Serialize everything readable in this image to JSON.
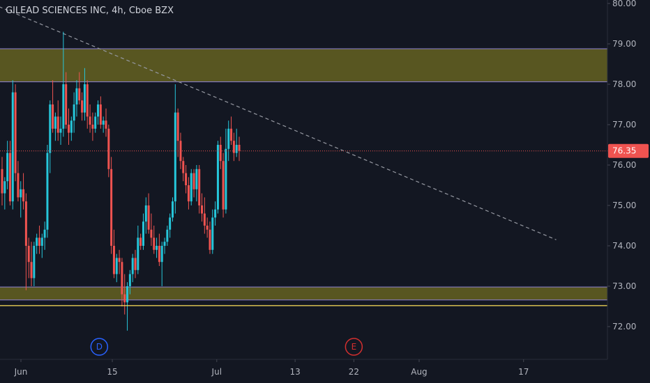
{
  "header": {
    "title": "GILEAD SCIENCES INC, 4h, Cboe BZX"
  },
  "colors": {
    "background": "#131722",
    "up": "#26c6da",
    "down": "#ef5350",
    "zone_fill": "#5c5a22",
    "zone_border": "#8a7fd1",
    "support_line": "#ffe15a",
    "trendline": "#9598a1",
    "price_line": "#ef5350",
    "axis_text": "#b2b5be",
    "marker_dividend": "#2962ff",
    "marker_earnings": "#d32f2f"
  },
  "chart_data": {
    "type": "candlestick",
    "title": "GILEAD SCIENCES INC, 4h, Cboe BZX",
    "y_range": [
      71.4,
      80.1
    ],
    "y_ticks": [
      "80.00",
      "79.00",
      "78.00",
      "77.00",
      "76.00",
      "75.00",
      "74.00",
      "73.00",
      "72.00"
    ],
    "x_ticks": [
      "Jun",
      "15",
      "Jul",
      "13",
      "22",
      "Aug",
      "17"
    ],
    "last_price": "76.35",
    "zones": [
      {
        "name": "resistance-zone",
        "top": 78.88,
        "bottom": 78.06
      },
      {
        "name": "support-zone",
        "top": 72.98,
        "bottom": 72.66
      }
    ],
    "horizontal_lines": [
      {
        "name": "support-line",
        "price": 72.52
      }
    ],
    "trendline": {
      "start": [
        "May 26",
        80.1
      ],
      "end": [
        "Aug 22",
        74.15
      ]
    },
    "markers": [
      {
        "label": "D",
        "type": "dividend",
        "date": "Jun 13"
      },
      {
        "label": "E",
        "type": "earnings",
        "date": "Jul 22"
      }
    ],
    "candles": [
      [
        75.9,
        76.2,
        75.0,
        75.3
      ],
      [
        75.3,
        75.7,
        74.9,
        75.6
      ],
      [
        75.6,
        76.6,
        75.4,
        76.3
      ],
      [
        76.3,
        76.6,
        75.0,
        75.1
      ],
      [
        75.1,
        78.1,
        74.9,
        77.8
      ],
      [
        77.8,
        78.0,
        75.6,
        75.8
      ],
      [
        75.8,
        76.1,
        75.1,
        75.2
      ],
      [
        75.2,
        75.6,
        74.7,
        75.4
      ],
      [
        75.4,
        75.8,
        74.9,
        75.1
      ],
      [
        75.1,
        75.3,
        72.9,
        74.0
      ],
      [
        74.0,
        74.2,
        73.2,
        73.6
      ],
      [
        73.6,
        74.1,
        73.0,
        73.2
      ],
      [
        73.2,
        74.1,
        73.0,
        74.0
      ],
      [
        74.0,
        74.3,
        73.8,
        74.2
      ],
      [
        74.2,
        74.5,
        73.8,
        74.0
      ],
      [
        74.0,
        74.3,
        73.7,
        74.2
      ],
      [
        74.2,
        74.6,
        73.9,
        74.4
      ],
      [
        74.4,
        76.5,
        74.2,
        76.3
      ],
      [
        76.3,
        77.6,
        75.8,
        77.5
      ],
      [
        77.5,
        78.1,
        76.8,
        76.9
      ],
      [
        76.9,
        77.3,
        76.6,
        77.2
      ],
      [
        77.2,
        77.6,
        76.6,
        76.8
      ],
      [
        76.8,
        77.2,
        76.5,
        76.9
      ],
      [
        76.9,
        79.3,
        76.7,
        78.0
      ],
      [
        78.0,
        78.3,
        76.9,
        77.0
      ],
      [
        77.0,
        77.4,
        76.5,
        76.8
      ],
      [
        76.8,
        77.2,
        76.6,
        77.1
      ],
      [
        77.1,
        77.8,
        76.8,
        77.5
      ],
      [
        77.5,
        78.1,
        77.2,
        77.9
      ],
      [
        77.9,
        78.3,
        77.5,
        77.6
      ],
      [
        77.6,
        77.8,
        77.1,
        77.3
      ],
      [
        77.3,
        78.4,
        77.1,
        78.0
      ],
      [
        78.0,
        78.1,
        76.9,
        77.2
      ],
      [
        77.2,
        77.5,
        76.8,
        77.0
      ],
      [
        77.0,
        77.3,
        76.6,
        76.9
      ],
      [
        76.9,
        77.3,
        76.8,
        77.2
      ],
      [
        77.2,
        77.6,
        77.0,
        77.5
      ],
      [
        77.5,
        77.7,
        76.9,
        77.0
      ],
      [
        77.0,
        77.2,
        76.8,
        77.1
      ],
      [
        77.1,
        77.4,
        76.7,
        76.9
      ],
      [
        76.9,
        77.0,
        75.7,
        75.9
      ],
      [
        75.9,
        76.2,
        73.8,
        74.0
      ],
      [
        74.0,
        74.4,
        73.2,
        73.3
      ],
      [
        73.3,
        73.8,
        73.1,
        73.7
      ],
      [
        73.7,
        73.9,
        73.3,
        73.6
      ],
      [
        73.6,
        73.7,
        72.5,
        72.8
      ],
      [
        72.8,
        73.3,
        72.3,
        72.6
      ],
      [
        72.6,
        73.1,
        71.9,
        73.0
      ],
      [
        73.0,
        73.4,
        72.8,
        73.3
      ],
      [
        73.3,
        73.8,
        73.1,
        73.7
      ],
      [
        73.7,
        73.9,
        73.2,
        73.4
      ],
      [
        73.4,
        74.5,
        73.3,
        74.2
      ],
      [
        74.2,
        74.3,
        73.9,
        74.0
      ],
      [
        74.0,
        74.8,
        73.9,
        74.6
      ],
      [
        74.6,
        75.2,
        74.3,
        75.0
      ],
      [
        75.0,
        75.3,
        74.3,
        74.4
      ],
      [
        74.4,
        74.8,
        74.0,
        74.2
      ],
      [
        74.2,
        74.5,
        73.8,
        73.9
      ],
      [
        73.9,
        74.2,
        73.7,
        74.0
      ],
      [
        74.0,
        74.3,
        73.5,
        73.6
      ],
      [
        73.6,
        74.1,
        73.0,
        74.0
      ],
      [
        74.0,
        74.2,
        73.8,
        74.1
      ],
      [
        74.1,
        74.5,
        74.0,
        74.4
      ],
      [
        74.4,
        74.8,
        74.2,
        74.7
      ],
      [
        74.7,
        75.2,
        74.6,
        75.1
      ],
      [
        75.1,
        78.0,
        74.8,
        77.3
      ],
      [
        77.3,
        77.4,
        76.2,
        76.6
      ],
      [
        76.6,
        76.8,
        75.9,
        76.1
      ],
      [
        76.1,
        76.2,
        75.6,
        75.8
      ],
      [
        75.8,
        76.0,
        75.3,
        75.5
      ],
      [
        75.5,
        75.7,
        74.9,
        75.1
      ],
      [
        75.1,
        75.9,
        75.0,
        75.8
      ],
      [
        75.8,
        75.9,
        75.2,
        75.4
      ],
      [
        75.4,
        76.0,
        75.1,
        75.9
      ],
      [
        75.9,
        76.0,
        74.8,
        75.0
      ],
      [
        75.0,
        75.3,
        74.6,
        74.8
      ],
      [
        74.8,
        75.2,
        74.3,
        74.5
      ],
      [
        74.5,
        74.7,
        74.2,
        74.4
      ],
      [
        74.4,
        74.6,
        73.8,
        73.9
      ],
      [
        73.9,
        74.9,
        73.8,
        74.7
      ],
      [
        74.7,
        75.1,
        74.5,
        74.9
      ],
      [
        74.9,
        76.6,
        74.8,
        76.5
      ],
      [
        76.5,
        76.7,
        75.9,
        76.1
      ],
      [
        76.1,
        76.3,
        74.7,
        74.9
      ],
      [
        74.9,
        76.9,
        74.8,
        76.4
      ],
      [
        76.4,
        77.1,
        76.1,
        76.9
      ],
      [
        76.9,
        77.2,
        76.5,
        76.6
      ],
      [
        76.6,
        76.8,
        76.1,
        76.3
      ],
      [
        76.3,
        76.9,
        76.2,
        76.5
      ],
      [
        76.5,
        76.7,
        76.1,
        76.35
      ]
    ]
  }
}
